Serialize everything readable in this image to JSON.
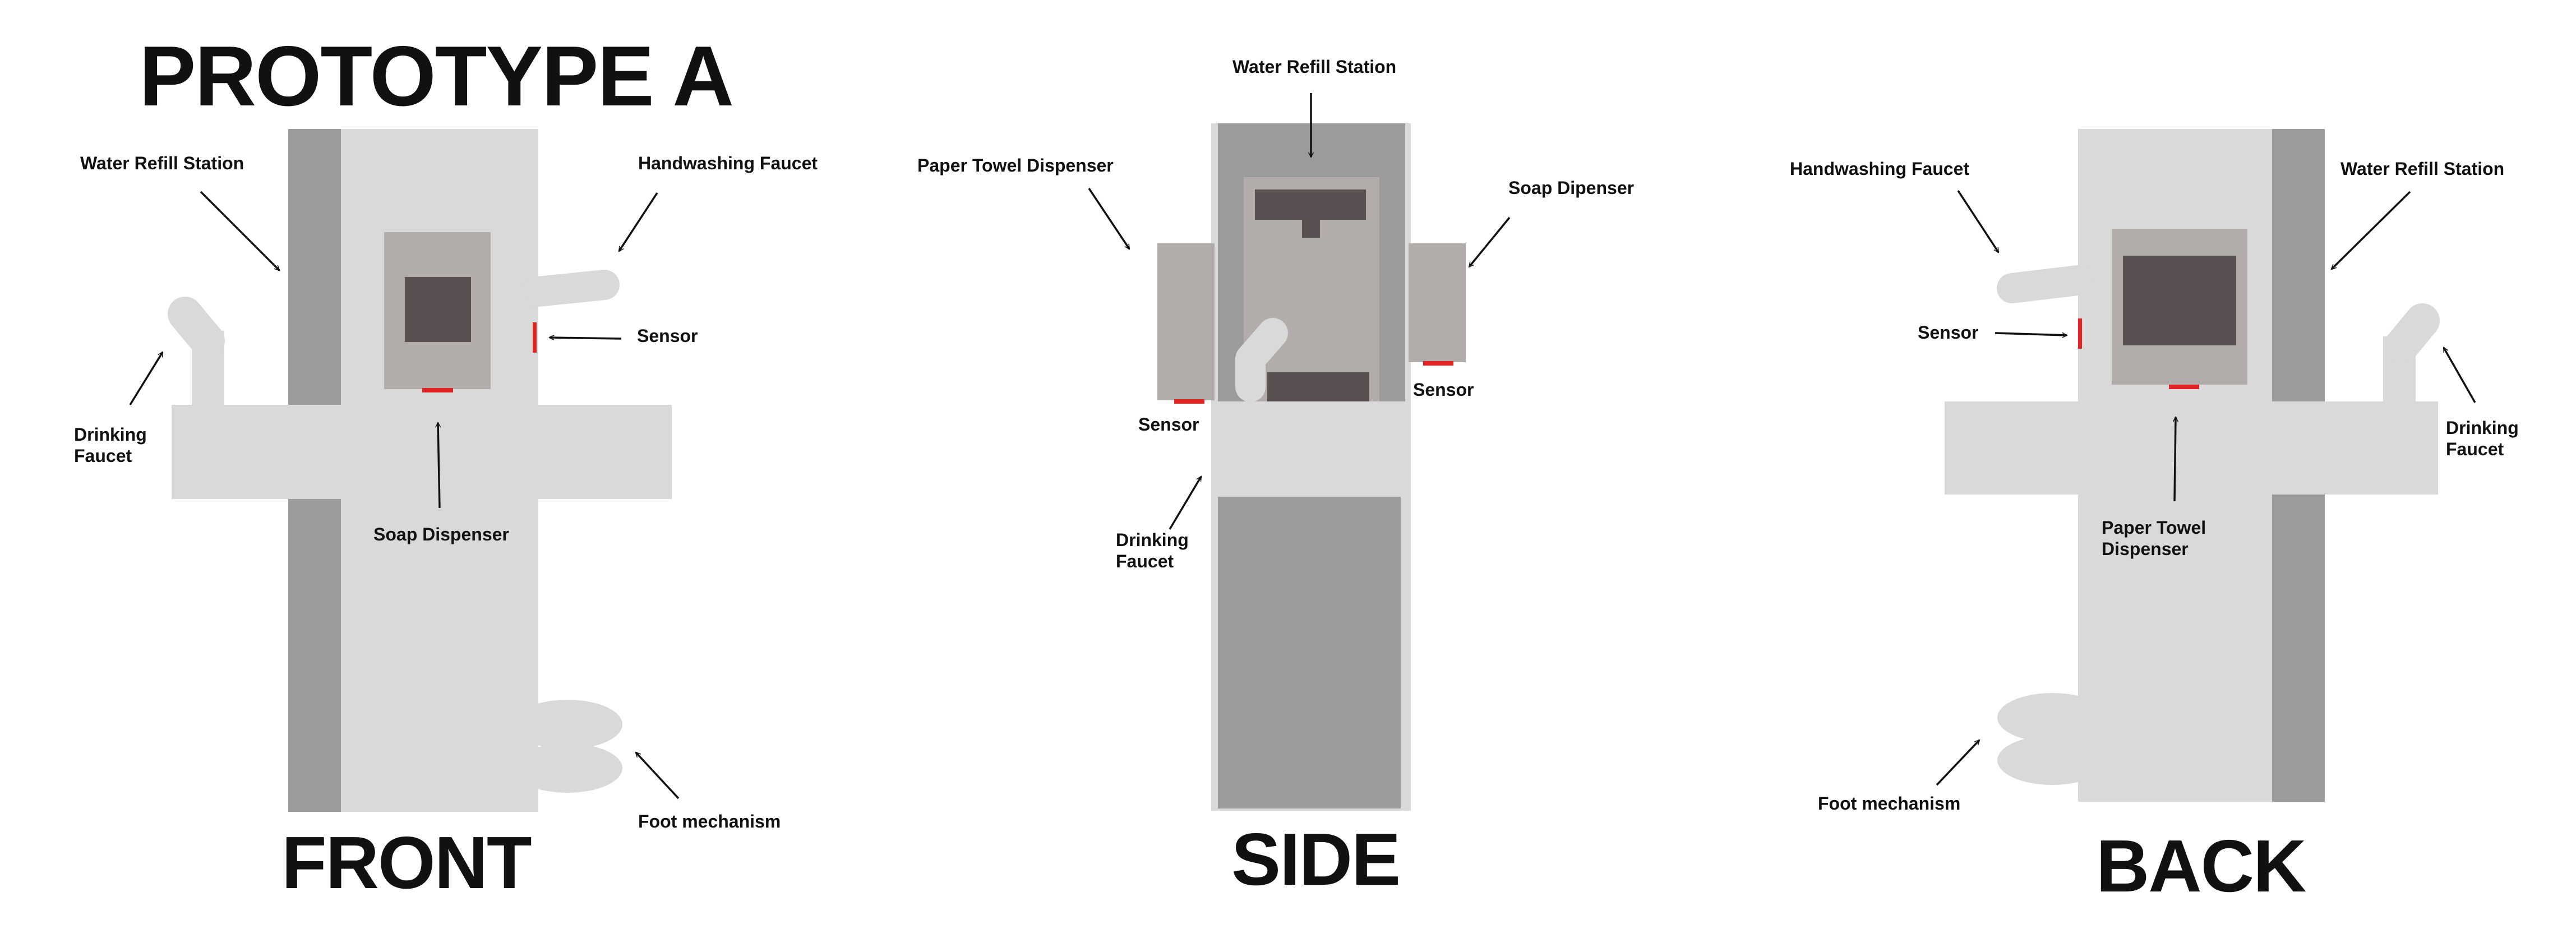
{
  "title": "PROTOTYPE A",
  "colors": {
    "body_light": "#d9d9d9",
    "body_dark": "#9b9b9b",
    "panel": "#b2acab",
    "screen": "#5a5052",
    "sensor": "#e02424",
    "text": "#111111"
  },
  "views": {
    "front": {
      "name": "FRONT",
      "labels": {
        "water_refill": "Water Refill Station",
        "handwashing_faucet": "Handwashing Faucet",
        "sensor": "Sensor",
        "drinking_faucet_1": "Drinking",
        "drinking_faucet_2": "Faucet",
        "soap_dispenser": "Soap Dispenser",
        "foot_mechanism": "Foot mechanism"
      }
    },
    "side": {
      "name": "SIDE",
      "labels": {
        "water_refill": "Water Refill Station",
        "paper_towel": "Paper Towel Dispenser",
        "soap_dispenser": "Soap Dipenser",
        "sensor_left": "Sensor",
        "sensor_right": "Sensor",
        "drinking_faucet_1": "Drinking",
        "drinking_faucet_2": "Faucet"
      }
    },
    "back": {
      "name": "BACK",
      "labels": {
        "handwashing_faucet": "Handwashing Faucet",
        "water_refill": "Water Refill Station",
        "sensor": "Sensor",
        "drinking_faucet_1": "Drinking",
        "drinking_faucet_2": "Faucet",
        "paper_towel_1": "Paper Towel",
        "paper_towel_2": "Dispenser",
        "foot_mechanism": "Foot mechanism"
      }
    }
  }
}
